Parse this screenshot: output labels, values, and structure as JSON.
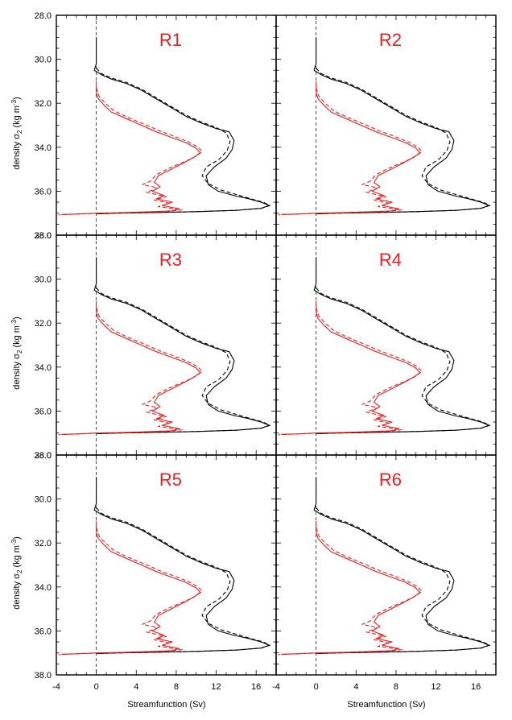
{
  "chart_data": {
    "type": "line",
    "xlabel": "Streamfunction (Sv)",
    "ylabel_main": "density σ",
    "ylabel_sub": "2",
    "ylabel_unit": " (kg m",
    "ylabel_exp": "-3",
    "ylabel_close": ")",
    "xlim": [
      -4,
      18
    ],
    "ylim": [
      28.0,
      38.0
    ],
    "x_ticks": [
      -4,
      0,
      4,
      8,
      12,
      16
    ],
    "x_tick_labels": [
      "-4",
      "0",
      "4",
      "8",
      "12",
      "16"
    ],
    "y_ticks": [
      28.0,
      30.0,
      32.0,
      34.0,
      36.0,
      38.0
    ],
    "y_tick_labels": [
      "28.0",
      "30.0",
      "32.0",
      "34.0",
      "36.0",
      "38.0"
    ],
    "reference_line_x": 0,
    "colors": {
      "black": "#000000",
      "red": "#ee1c1c"
    },
    "panels": [
      {
        "label": "R1"
      },
      {
        "label": "R2"
      },
      {
        "label": "R3"
      },
      {
        "label": "R4"
      },
      {
        "label": "R5"
      },
      {
        "label": "R6"
      }
    ],
    "series": [
      {
        "color": "black",
        "dash": "solid",
        "points": [
          [
            0,
            29.0
          ],
          [
            0,
            29.6
          ],
          [
            0,
            30.2
          ],
          [
            -0.2,
            30.5
          ],
          [
            0.5,
            30.7
          ],
          [
            1.5,
            30.9
          ],
          [
            3,
            31.1
          ],
          [
            4.5,
            31.4
          ],
          [
            6,
            31.8
          ],
          [
            7.5,
            32.2
          ],
          [
            9,
            32.6
          ],
          [
            10.5,
            32.9
          ],
          [
            12,
            33.15
          ],
          [
            13.3,
            33.3
          ],
          [
            13.8,
            33.7
          ],
          [
            13.6,
            34.1
          ],
          [
            13,
            34.5
          ],
          [
            11.8,
            34.9
          ],
          [
            11,
            35.3
          ],
          [
            11.2,
            35.7
          ],
          [
            12.2,
            36.0
          ],
          [
            13.8,
            36.2
          ],
          [
            15.3,
            36.35
          ],
          [
            16.5,
            36.5
          ],
          [
            17.3,
            36.65
          ],
          [
            16.5,
            36.78
          ],
          [
            14,
            36.87
          ],
          [
            10,
            36.93
          ],
          [
            6,
            36.97
          ],
          [
            2,
            37.0
          ],
          [
            0,
            37.03
          ]
        ]
      },
      {
        "color": "black",
        "dash": "dashed",
        "points": [
          [
            0,
            30.4
          ],
          [
            0.5,
            30.65
          ],
          [
            1.5,
            30.85
          ],
          [
            3,
            31.05
          ],
          [
            4.5,
            31.35
          ],
          [
            6,
            31.75
          ],
          [
            7.5,
            32.15
          ],
          [
            9,
            32.55
          ],
          [
            10.5,
            32.85
          ],
          [
            12,
            33.1
          ],
          [
            13,
            33.35
          ],
          [
            13.4,
            33.75
          ],
          [
            13.1,
            34.15
          ],
          [
            12.3,
            34.55
          ],
          [
            11,
            34.9
          ],
          [
            10.6,
            35.3
          ],
          [
            11.2,
            35.65
          ],
          [
            12.5,
            35.95
          ],
          [
            14,
            36.15
          ],
          [
            15.5,
            36.35
          ],
          [
            16.7,
            36.5
          ],
          [
            17.4,
            36.65
          ],
          [
            16.5,
            36.78
          ],
          [
            14,
            36.87
          ],
          [
            10,
            36.93
          ],
          [
            6,
            36.97
          ],
          [
            2,
            37.0
          ],
          [
            0,
            37.03
          ]
        ]
      },
      {
        "color": "red",
        "dash": "solid",
        "points": [
          [
            0,
            31.0
          ],
          [
            0,
            31.5
          ],
          [
            0.2,
            31.8
          ],
          [
            0.8,
            32.1
          ],
          [
            1.5,
            32.4
          ],
          [
            3,
            32.7
          ],
          [
            4.5,
            33.0
          ],
          [
            6,
            33.3
          ],
          [
            7.5,
            33.55
          ],
          [
            9,
            33.8
          ],
          [
            10,
            34.05
          ],
          [
            10.4,
            34.25
          ],
          [
            9.8,
            34.45
          ],
          [
            8.8,
            34.7
          ],
          [
            7.5,
            35.0
          ],
          [
            6.2,
            35.3
          ],
          [
            5.8,
            35.6
          ],
          [
            6.4,
            35.8
          ],
          [
            5.6,
            36.0
          ],
          [
            6.8,
            36.2
          ],
          [
            6,
            36.35
          ],
          [
            7.6,
            36.5
          ],
          [
            6.6,
            36.65
          ],
          [
            8.3,
            36.8
          ],
          [
            7.5,
            36.9
          ],
          [
            3,
            36.97
          ],
          [
            0,
            37.0
          ],
          [
            -2,
            37.04
          ],
          [
            -3.5,
            37.06
          ]
        ]
      },
      {
        "color": "red",
        "dash": "dashed",
        "points": [
          [
            0,
            31.3
          ],
          [
            0.3,
            31.7
          ],
          [
            0.9,
            32.0
          ],
          [
            1.8,
            32.35
          ],
          [
            3.2,
            32.65
          ],
          [
            4.8,
            32.95
          ],
          [
            6.3,
            33.25
          ],
          [
            7.8,
            33.5
          ],
          [
            9.2,
            33.75
          ],
          [
            10.2,
            34.0
          ],
          [
            10.6,
            34.2
          ],
          [
            10,
            34.4
          ],
          [
            8.9,
            34.65
          ],
          [
            7.3,
            34.95
          ],
          [
            6,
            35.25
          ],
          [
            5.4,
            35.55
          ],
          [
            4.6,
            35.7
          ],
          [
            6.2,
            35.85
          ],
          [
            5,
            36.05
          ],
          [
            7,
            36.25
          ],
          [
            5.8,
            36.4
          ],
          [
            7.3,
            36.55
          ],
          [
            6.2,
            36.7
          ],
          [
            8.6,
            36.85
          ],
          [
            7,
            36.93
          ],
          [
            3,
            36.98
          ],
          [
            0,
            37.01
          ],
          [
            -2.5,
            37.05
          ],
          [
            -3.8,
            37.08
          ]
        ]
      }
    ]
  }
}
